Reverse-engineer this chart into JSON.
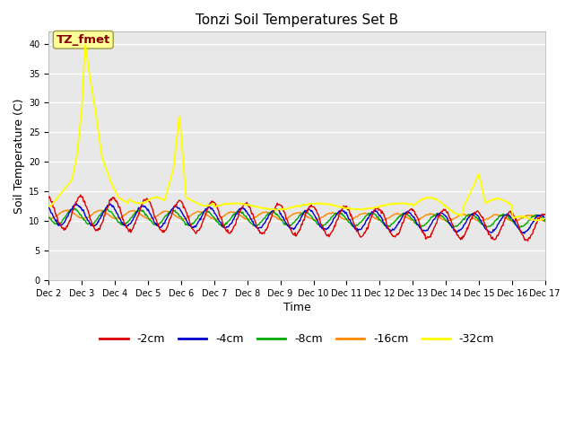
{
  "title": "Tonzi Soil Temperatures Set B",
  "xlabel": "Time",
  "ylabel": "Soil Temperature (C)",
  "ylim": [
    0,
    42
  ],
  "yticks": [
    0,
    5,
    10,
    15,
    20,
    25,
    30,
    35,
    40
  ],
  "bg_color": "#e8e8e8",
  "fig_bg": "#ffffff",
  "line_colors": {
    "-2cm": "#dd0000",
    "-4cm": "#0000cc",
    "-8cm": "#00aa00",
    "-16cm": "#ff8800",
    "-32cm": "#ffff00"
  },
  "annotation_text": "TZ_fmet",
  "annotation_color": "#880000",
  "annotation_bg": "#ffff99",
  "annotation_edge": "#999944",
  "n_points": 720,
  "days": 15,
  "figsize": [
    6.4,
    4.8
  ],
  "dpi": 100,
  "title_fontsize": 11,
  "axis_label_fontsize": 9,
  "tick_fontsize": 7,
  "legend_fontsize": 9,
  "grid_color": "#ffffff",
  "grid_linewidth": 1.0
}
